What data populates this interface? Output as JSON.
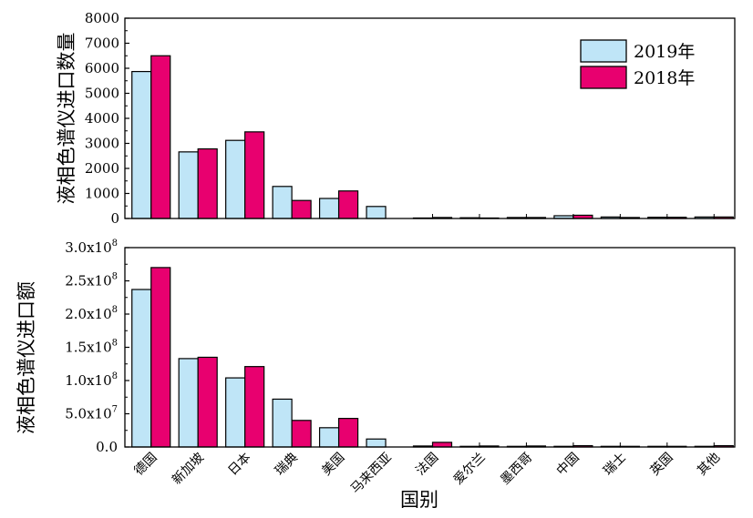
{
  "chart_data": [
    {
      "type": "bar",
      "ylabel": "液相色谱仪进口数量",
      "ylim": [
        0,
        8000
      ],
      "yticks": [
        "0",
        "1000",
        "2000",
        "3000",
        "4000",
        "5000",
        "6000",
        "7000",
        "8000"
      ],
      "legend_position": "top-right",
      "categories": [
        "德国",
        "新加坡",
        "日本",
        "瑞典",
        "美国",
        "马来西亚",
        "法国",
        "爱尔兰",
        "墨西哥",
        "中国",
        "瑞士",
        "英国",
        "其他"
      ],
      "series": [
        {
          "name": "2019年",
          "color": "#bfe5f7",
          "values": [
            5870,
            2660,
            3120,
            1280,
            800,
            480,
            20,
            30,
            40,
            110,
            60,
            50,
            60
          ]
        },
        {
          "name": "2018年",
          "color": "#e8006f",
          "values": [
            6500,
            2780,
            3460,
            720,
            1100,
            0,
            40,
            20,
            40,
            130,
            40,
            50,
            60
          ]
        }
      ]
    },
    {
      "type": "bar",
      "ylabel": "液相色谱仪进口额",
      "xlabel": "国别",
      "ylim": [
        0,
        300000000.0
      ],
      "ytick_values": [
        0,
        50000000.0,
        100000000.0,
        150000000.0,
        200000000.0,
        250000000.0,
        300000000.0
      ],
      "yticks": [
        {
          "mant": "0.0",
          "exp": ""
        },
        {
          "mant": "5.0x10",
          "exp": "7"
        },
        {
          "mant": "1.0x10",
          "exp": "8"
        },
        {
          "mant": "1.5x10",
          "exp": "8"
        },
        {
          "mant": "2.0x10",
          "exp": "8"
        },
        {
          "mant": "2.5x10",
          "exp": "8"
        },
        {
          "mant": "3.0x10",
          "exp": "8"
        }
      ],
      "categories": [
        "德国",
        "新加坡",
        "日本",
        "瑞典",
        "美国",
        "马来西亚",
        "法国",
        "爱尔兰",
        "墨西哥",
        "中国",
        "瑞士",
        "英国",
        "其他"
      ],
      "series": [
        {
          "name": "2019年",
          "color": "#bfe5f7",
          "values": [
            237000000.0,
            133000000.0,
            104000000.0,
            72000000.0,
            29000000.0,
            12000000.0,
            1500000.0,
            1000000.0,
            1000000.0,
            1000000.0,
            1000000.0,
            1000000.0,
            1000000.0
          ]
        },
        {
          "name": "2018年",
          "color": "#e8006f",
          "values": [
            270000000.0,
            135000000.0,
            121000000.0,
            40000000.0,
            43000000.0,
            0,
            7000000.0,
            1500000.0,
            1500000.0,
            2000000.0,
            1000000.0,
            1000000.0,
            2000000.0
          ]
        }
      ]
    }
  ]
}
